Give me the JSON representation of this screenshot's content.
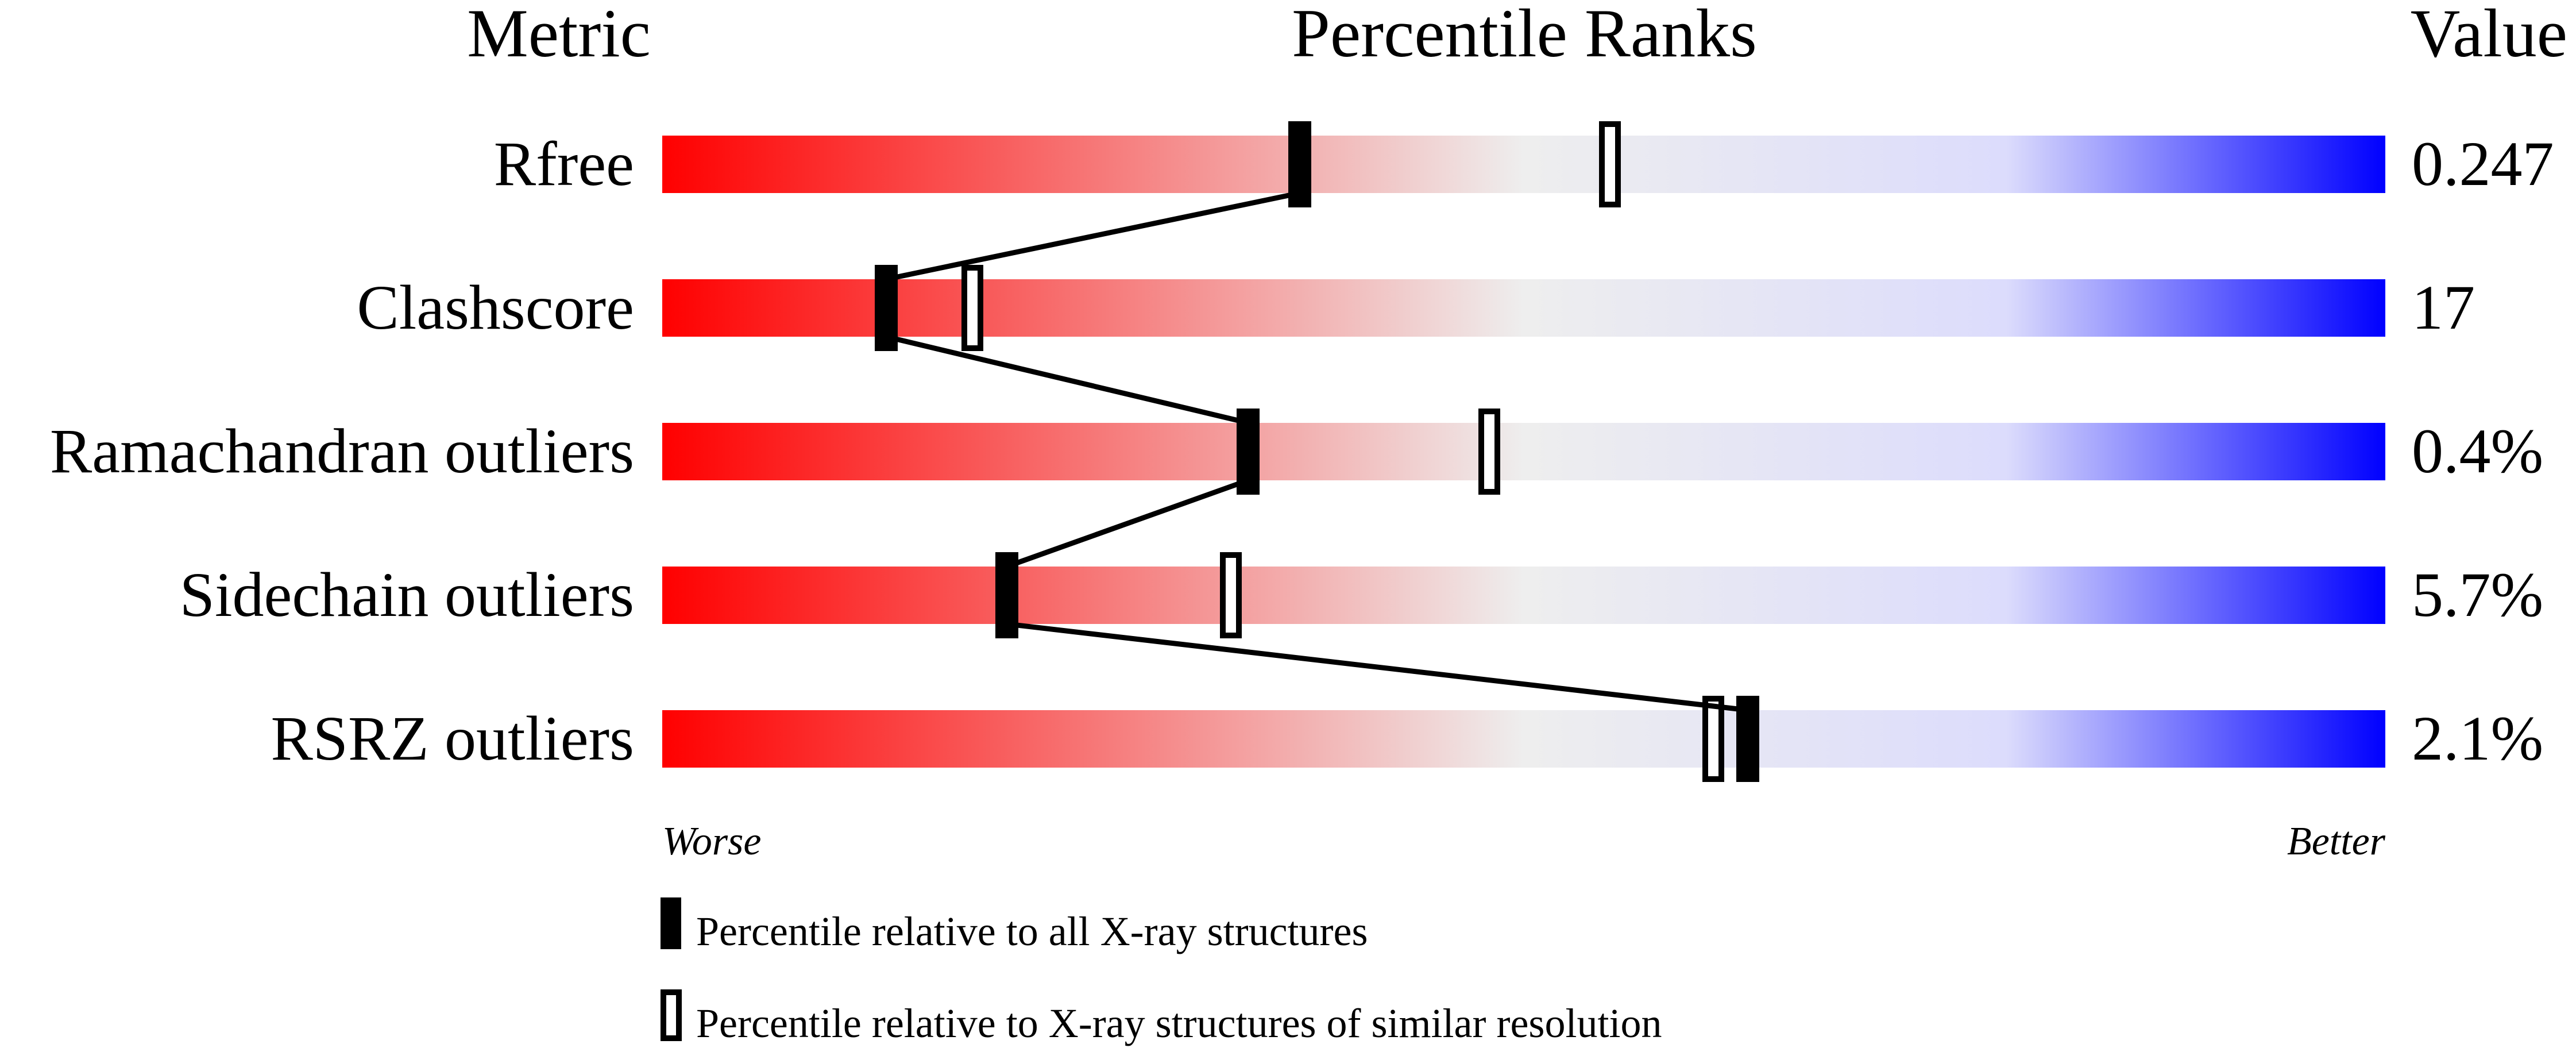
{
  "chart_data": {
    "type": "percentile-slider",
    "headers": {
      "metric": "Metric",
      "ranks": "Percentile Ranks",
      "value": "Value"
    },
    "axis": {
      "worse": "Worse",
      "better": "Better",
      "range": [
        0,
        100
      ]
    },
    "colors": {
      "worse": "#ff0000",
      "middle": "#eeeeee",
      "better": "#0000ff",
      "marker": "#000000"
    },
    "rows": [
      {
        "metric": "Rfree",
        "value": "0.247",
        "percentile_all": 37,
        "percentile_similar": 55
      },
      {
        "metric": "Clashscore",
        "value": "17",
        "percentile_all": 13,
        "percentile_similar": 18
      },
      {
        "metric": "Ramachandran outliers",
        "value": "0.4%",
        "percentile_all": 34,
        "percentile_similar": 48
      },
      {
        "metric": "Sidechain outliers",
        "value": "5.7%",
        "percentile_all": 20,
        "percentile_similar": 33
      },
      {
        "metric": "RSRZ outliers",
        "value": "2.1%",
        "percentile_all": 63,
        "percentile_similar": 61
      }
    ],
    "legend": {
      "all": "Percentile relative to all X-ray structures",
      "similar": "Percentile relative to X-ray structures of similar resolution"
    }
  }
}
